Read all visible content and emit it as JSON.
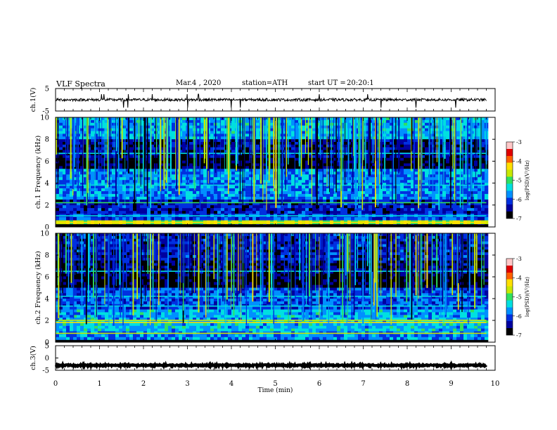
{
  "header": {
    "title": "VLF  Spectra",
    "date": "Mar.4  , 2020",
    "station": "station=ATH",
    "start_label": "start  UT  =",
    "start_time": "20:20:1"
  },
  "chart_data": [
    {
      "type": "line",
      "panel": "ch1-waveform",
      "ylabel": "ch.1(V)",
      "ylim": [
        -5,
        5
      ],
      "yticks": [
        "5",
        "-5"
      ],
      "xlim": [
        0,
        10
      ],
      "baseline": 0,
      "noise_amplitude": 0.6,
      "x_end": 9.8,
      "spike_times": [
        1.05,
        1.1,
        1.55,
        1.65,
        2.2,
        3.0,
        3.25,
        4.0,
        4.2,
        6.0,
        7.1,
        7.4,
        8.2,
        9.1
      ]
    },
    {
      "type": "heatmap",
      "panel": "ch1-spectrogram",
      "ylabel": "ch.1 Frequency  (kHz)",
      "ylim": [
        0,
        10
      ],
      "yticks": [
        "0",
        "2",
        "4",
        "6",
        "8",
        "10"
      ],
      "xlim": [
        0,
        10
      ],
      "x_end": 9.8,
      "zlabel": "log(PSD)(V²/Hz)",
      "zlim": [
        -7,
        -3
      ],
      "zticks": [
        "-3",
        "-4",
        "-5",
        "-6",
        "-7"
      ],
      "colormap": [
        "#000000",
        "#0000a0",
        "#0030e0",
        "#0090ff",
        "#00e0e0",
        "#30e060",
        "#c8e800",
        "#ffe000",
        "#ff6000",
        "#e00000",
        "#ffc8c8"
      ],
      "bands": [
        {
          "f": [
            8.0,
            10.0
          ],
          "level": -5.6
        },
        {
          "f": [
            6.3,
            8.0
          ],
          "level": -6.5
        },
        {
          "f": [
            5.3,
            6.3
          ],
          "level": -6.85
        },
        {
          "f": [
            2.5,
            5.3
          ],
          "level": -5.8
        },
        {
          "f": [
            1.2,
            2.5
          ],
          "level": -6.3
        },
        {
          "f": [
            0.6,
            1.2
          ],
          "level": -6.0
        },
        {
          "f": [
            0.25,
            0.6
          ],
          "level": -4.7
        },
        {
          "f": [
            0.0,
            0.25
          ],
          "level": -7.0
        }
      ],
      "lines": [
        {
          "f": 6.7,
          "level": -5.4
        },
        {
          "f": 3.8,
          "level": -5.3
        },
        {
          "f": 2.2,
          "level": -5.0
        },
        {
          "f": 1.0,
          "level": -5.2
        },
        {
          "f": 0.4,
          "level": -4.2
        }
      ]
    },
    {
      "type": "heatmap",
      "panel": "ch2-spectrogram",
      "ylabel": "ch.2 Frequency  (kHz)",
      "ylim": [
        0,
        10
      ],
      "yticks": [
        "0",
        "2",
        "4",
        "6",
        "8",
        "10"
      ],
      "xlim": [
        0,
        10
      ],
      "x_end": 9.8,
      "zlabel": "log(PSD)(V²/Hz)",
      "zlim": [
        -7,
        -3
      ],
      "zticks": [
        "-3",
        "-4",
        "-5",
        "-6",
        "-7"
      ],
      "colormap": [
        "#000000",
        "#0000a0",
        "#0030e0",
        "#0090ff",
        "#00e0e0",
        "#30e060",
        "#c8e800",
        "#ffe000",
        "#ff6000",
        "#e00000",
        "#ffc8c8"
      ],
      "bands": [
        {
          "f": [
            7.5,
            10.0
          ],
          "level": -6.3
        },
        {
          "f": [
            6.3,
            7.5
          ],
          "level": -6.6
        },
        {
          "f": [
            5.0,
            6.3
          ],
          "level": -6.85
        },
        {
          "f": [
            3.0,
            5.0
          ],
          "level": -6.0
        },
        {
          "f": [
            2.0,
            3.0
          ],
          "level": -5.6
        },
        {
          "f": [
            1.0,
            2.0
          ],
          "level": -5.5
        },
        {
          "f": [
            0.2,
            1.0
          ],
          "level": -5.8
        },
        {
          "f": [
            0.0,
            0.2
          ],
          "level": -7.0
        }
      ],
      "lines": [
        {
          "f": 6.5,
          "level": -5.5
        },
        {
          "f": 4.2,
          "level": -5.4
        },
        {
          "f": 3.3,
          "level": -5.2
        },
        {
          "f": 2.0,
          "level": -4.6
        },
        {
          "f": 1.8,
          "level": -4.4
        },
        {
          "f": 0.8,
          "level": -4.8
        }
      ]
    },
    {
      "type": "line",
      "panel": "ch3-waveform",
      "ylabel": "ch.3(V)",
      "ylim": [
        -5,
        5
      ],
      "yticks": [
        "5",
        "0",
        "-5"
      ],
      "xlim": [
        0,
        10
      ],
      "xlabel": "Time  (min)",
      "xticks": [
        "0",
        "1",
        "2",
        "3",
        "4",
        "5",
        "6",
        "7",
        "8",
        "9",
        "10"
      ],
      "baseline": -3,
      "noise_amplitude": 0.3,
      "x_end": 9.8
    }
  ]
}
